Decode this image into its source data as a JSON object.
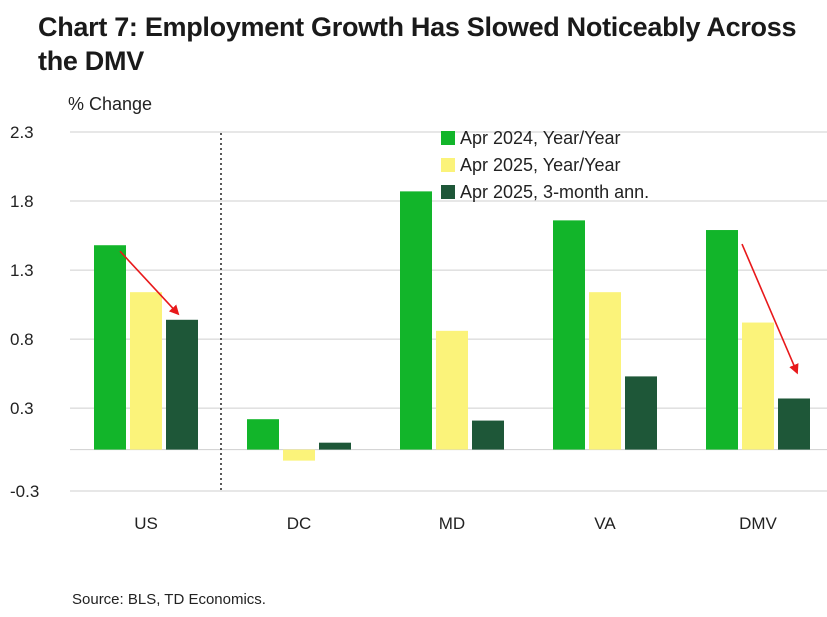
{
  "title": "Chart 7: Employment Growth Has Slowed Noticeably Across the DMV",
  "source": "Source: BLS, TD Economics.",
  "colors": {
    "series1": "#12b52a",
    "series2": "#fbf37a",
    "series3": "#1e5738",
    "arrow": "#e8191b",
    "grid": "#cfcfcf"
  },
  "chart_data": {
    "type": "bar",
    "title": "Chart 7: Employment Growth Has Slowed Noticeably Across the DMV",
    "ylabel": "% Change",
    "xlabel": "",
    "ylim": [
      -0.3,
      2.3
    ],
    "yticks": [
      2.3,
      1.8,
      1.3,
      0.8,
      0.3,
      -0.3
    ],
    "ytick_labels": [
      "2.3",
      "1.8",
      "1.3",
      "0.8",
      "0.3",
      "-0.3"
    ],
    "grid": true,
    "legend_position": "top-right",
    "categories": [
      "US",
      "DC",
      "MD",
      "VA",
      "DMV"
    ],
    "series": [
      {
        "name": "Apr 2024, Year/Year",
        "values": [
          1.48,
          0.22,
          1.87,
          1.66,
          1.59
        ]
      },
      {
        "name": "Apr 2025, Year/Year",
        "values": [
          1.14,
          -0.08,
          0.86,
          1.14,
          0.92
        ]
      },
      {
        "name": "Apr 2025, 3-month ann.",
        "values": [
          0.94,
          0.05,
          0.21,
          0.53,
          0.37
        ]
      }
    ],
    "annotations": [
      {
        "type": "arrow",
        "category": "US",
        "description": "decline from Apr 2024 to 3-month ann."
      },
      {
        "type": "arrow",
        "category": "DMV",
        "description": "decline from Apr 2024 to 3-month ann."
      }
    ]
  }
}
